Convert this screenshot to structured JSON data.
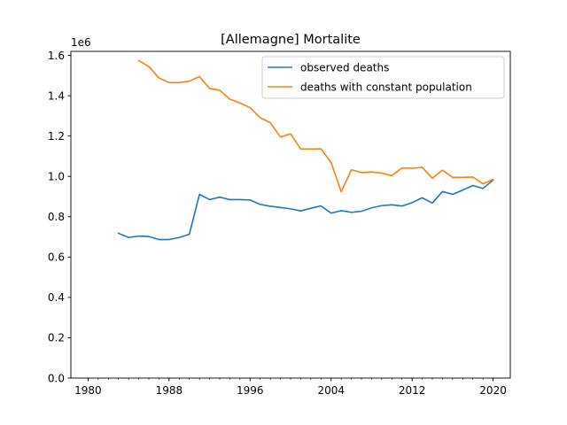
{
  "chart_data": {
    "type": "line",
    "title": "[Allemagne] Mortalite",
    "xlabel": "",
    "ylabel": "",
    "y_scale_label": "1e6",
    "xlim": [
      1978.3,
      2021.7
    ],
    "ylim": [
      0,
      1.62
    ],
    "x_ticks": [
      1980,
      1988,
      1996,
      2004,
      2012,
      2020
    ],
    "x_tick_labels": [
      "1980",
      "1988",
      "1996",
      "2004",
      "2012",
      "2020"
    ],
    "x_minor_ticks": [
      1980,
      1981,
      1982,
      1983,
      1984,
      1985,
      1986,
      1987,
      1988,
      1989,
      1990,
      1991,
      1992,
      1993,
      1994,
      1995,
      1996,
      1997,
      1998,
      1999,
      2000,
      2001,
      2002,
      2003,
      2004,
      2005,
      2006,
      2007,
      2008,
      2009,
      2010,
      2011,
      2012,
      2013,
      2014,
      2015,
      2016,
      2017,
      2018,
      2019,
      2020
    ],
    "y_ticks": [
      0.0,
      0.2,
      0.4,
      0.6,
      0.8,
      1.0,
      1.2,
      1.4,
      1.6
    ],
    "y_tick_labels": [
      "0.0",
      "0.2",
      "0.4",
      "0.6",
      "0.8",
      "1.0",
      "1.2",
      "1.4",
      "1.6"
    ],
    "grid": false,
    "legend_position": "top-right",
    "series": [
      {
        "name": "observed deaths",
        "color": "#1f77b4",
        "x": [
          1983,
          1984,
          1985,
          1986,
          1987,
          1988,
          1989,
          1990,
          1991,
          1992,
          1993,
          1994,
          1995,
          1996,
          1997,
          1998,
          1999,
          2000,
          2001,
          2002,
          2003,
          2004,
          2005,
          2006,
          2007,
          2008,
          2009,
          2010,
          2011,
          2012,
          2013,
          2014,
          2015,
          2016,
          2017,
          2018,
          2019,
          2020
        ],
        "values": [
          0.718,
          0.697,
          0.704,
          0.702,
          0.687,
          0.687,
          0.697,
          0.713,
          0.911,
          0.885,
          0.897,
          0.885,
          0.885,
          0.883,
          0.861,
          0.852,
          0.846,
          0.839,
          0.829,
          0.842,
          0.854,
          0.818,
          0.83,
          0.822,
          0.827,
          0.844,
          0.855,
          0.859,
          0.853,
          0.87,
          0.894,
          0.868,
          0.925,
          0.911,
          0.932,
          0.955,
          0.94,
          0.982
        ]
      },
      {
        "name": "deaths with constant population",
        "color": "#ff7f0e",
        "x": [
          1985,
          1986,
          1987,
          1988,
          1989,
          1990,
          1991,
          1992,
          1993,
          1994,
          1995,
          1996,
          1997,
          1998,
          1999,
          2000,
          2001,
          2002,
          2003,
          2004,
          2005,
          2006,
          2007,
          2008,
          2009,
          2010,
          2011,
          2012,
          2013,
          2014,
          2015,
          2016,
          2017,
          2018,
          2019,
          2020
        ],
        "values": [
          1.574,
          1.545,
          1.488,
          1.465,
          1.465,
          1.472,
          1.495,
          1.436,
          1.427,
          1.383,
          1.364,
          1.341,
          1.291,
          1.266,
          1.195,
          1.211,
          1.136,
          1.136,
          1.137,
          1.069,
          0.924,
          1.033,
          1.019,
          1.022,
          1.016,
          1.004,
          1.042,
          1.04,
          1.045,
          0.991,
          1.031,
          0.995,
          0.995,
          0.997,
          0.963,
          0.985
        ]
      }
    ]
  }
}
